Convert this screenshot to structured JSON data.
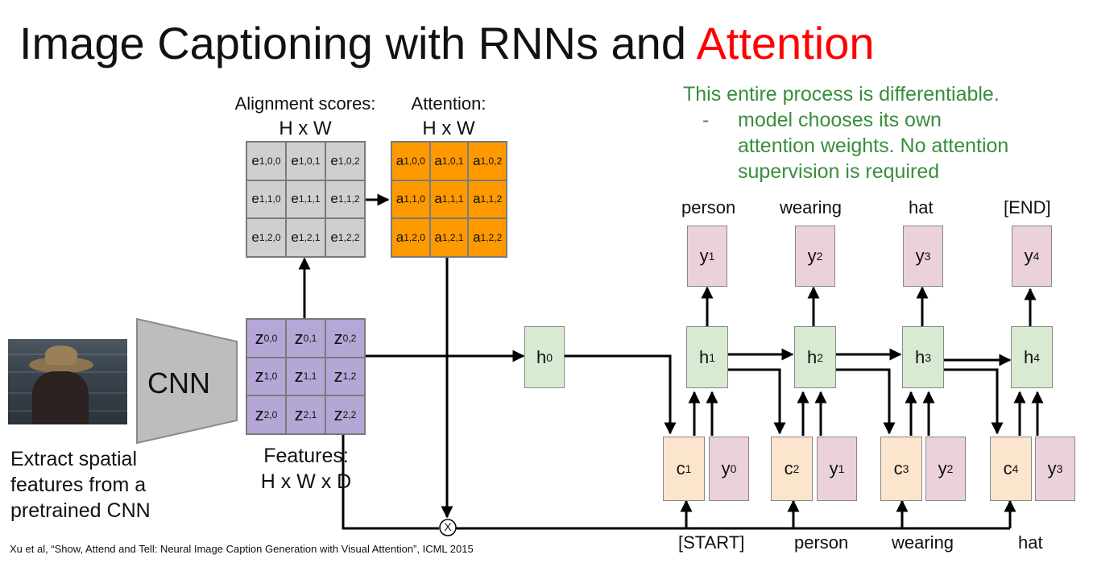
{
  "title": {
    "text": "Image Captioning with RNNs and ",
    "accent": "Attention"
  },
  "alignment": {
    "label": "Alignment scores:",
    "dims": "H x W",
    "cells": [
      {
        "b": "e",
        "s": "1,0,0"
      },
      {
        "b": "e",
        "s": "1,0,1"
      },
      {
        "b": "e",
        "s": "1,0,2"
      },
      {
        "b": "e",
        "s": "1,1,0"
      },
      {
        "b": "e",
        "s": "1,1,1"
      },
      {
        "b": "e",
        "s": "1,1,2"
      },
      {
        "b": "e",
        "s": "1,2,0"
      },
      {
        "b": "e",
        "s": "1,2,1"
      },
      {
        "b": "e",
        "s": "1,2,2"
      }
    ]
  },
  "attention": {
    "label": "Attention:",
    "dims": "H x W",
    "cells": [
      {
        "b": "a",
        "s": "1,0,0"
      },
      {
        "b": "a",
        "s": "1,0,1"
      },
      {
        "b": "a",
        "s": "1,0,2"
      },
      {
        "b": "a",
        "s": "1,1,0"
      },
      {
        "b": "a",
        "s": "1,1,1"
      },
      {
        "b": "a",
        "s": "1,1,2"
      },
      {
        "b": "a",
        "s": "1,2,0"
      },
      {
        "b": "a",
        "s": "1,2,1"
      },
      {
        "b": "a",
        "s": "1,2,2"
      }
    ]
  },
  "features": {
    "label": "Features:",
    "dims": "H x W x D",
    "cells": [
      {
        "b": "z",
        "s": "0,0"
      },
      {
        "b": "z",
        "s": "0,1"
      },
      {
        "b": "z",
        "s": "0,2"
      },
      {
        "b": "z",
        "s": "1,0"
      },
      {
        "b": "z",
        "s": "1,1"
      },
      {
        "b": "z",
        "s": "1,2"
      },
      {
        "b": "z",
        "s": "2,0"
      },
      {
        "b": "z",
        "s": "2,1"
      },
      {
        "b": "z",
        "s": "2,2"
      }
    ]
  },
  "note": {
    "line1": "This entire process is differentiable.",
    "dash": "-",
    "line2": "model chooses its own",
    "line3": "attention weights. No attention",
    "line4": "supervision is required"
  },
  "cnn_label": "CNN",
  "extract": {
    "line1": "Extract spatial",
    "line2": "features from a",
    "line3": "pretrained CNN"
  },
  "h0": {
    "b": "h",
    "s": "0"
  },
  "steps": [
    {
      "out": "person",
      "y": {
        "b": "y",
        "s": "1"
      },
      "h": {
        "b": "h",
        "s": "1"
      },
      "c": {
        "b": "c",
        "s": "1"
      },
      "yin": {
        "b": "y",
        "s": "0"
      },
      "in": "[START]"
    },
    {
      "out": "wearing",
      "y": {
        "b": "y",
        "s": "2"
      },
      "h": {
        "b": "h",
        "s": "2"
      },
      "c": {
        "b": "c",
        "s": "2"
      },
      "yin": {
        "b": "y",
        "s": "1"
      },
      "in": "person"
    },
    {
      "out": "hat",
      "y": {
        "b": "y",
        "s": "3"
      },
      "h": {
        "b": "h",
        "s": "3"
      },
      "c": {
        "b": "c",
        "s": "3"
      },
      "yin": {
        "b": "y",
        "s": "2"
      },
      "in": "wearing"
    },
    {
      "out": "[END]",
      "y": {
        "b": "y",
        "s": "4"
      },
      "h": {
        "b": "h",
        "s": "4"
      },
      "c": {
        "b": "c",
        "s": "4"
      },
      "yin": {
        "b": "y",
        "s": "3"
      },
      "in": "hat"
    }
  ],
  "multiply_symbol": "X",
  "citation": "Xu et al, “Show, Attend and Tell: Neural Image Caption Generation with Visual Attention”, ICML 2015"
}
